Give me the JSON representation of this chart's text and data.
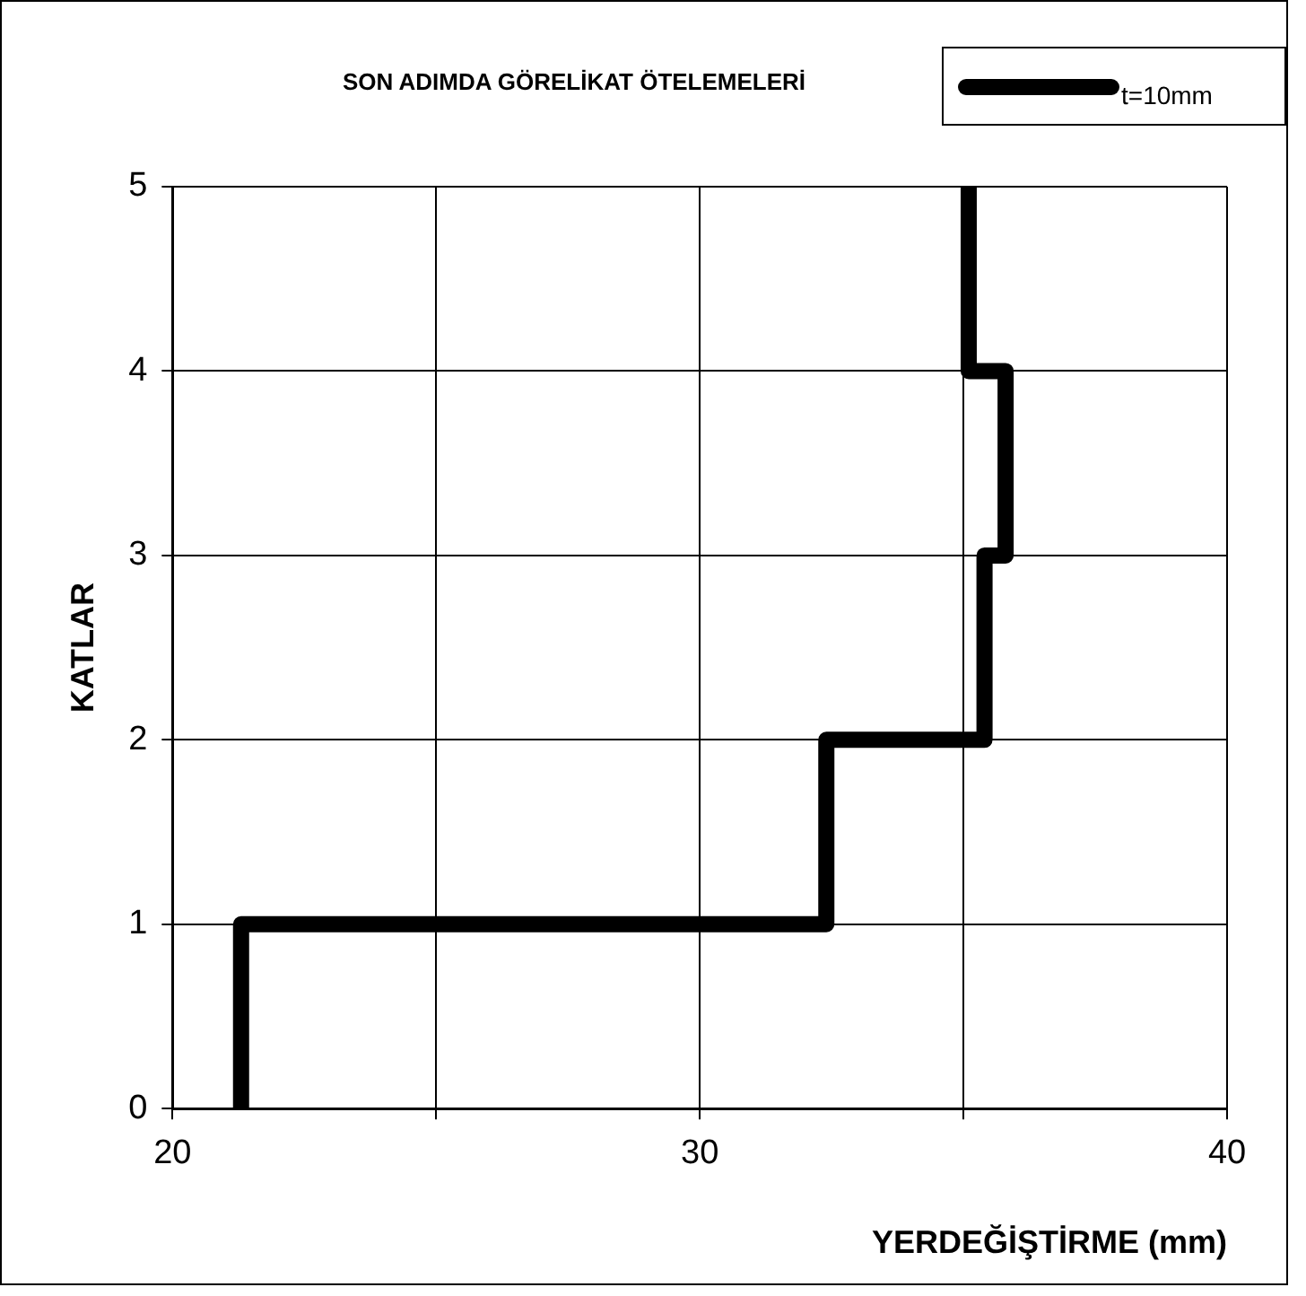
{
  "chart_data": {
    "type": "line",
    "title": "SON ADIMDA GÖRELİKAT ÖTELEMELERİ",
    "xlabel": "YERDEĞİŞTİRME (mm)",
    "ylabel": "KATLAR",
    "series": [
      {
        "name": "t=10mm",
        "color": "#000000",
        "x": [
          21.3,
          21.3,
          32.4,
          32.4,
          35.4,
          35.4,
          35.8,
          35.8,
          35.1,
          35.1
        ],
        "values": [
          0,
          1,
          1,
          2,
          2,
          3,
          3,
          4,
          4,
          5
        ]
      }
    ],
    "xlim": [
      20,
      40
    ],
    "xticks": [
      20,
      {
        "value": 25,
        "label": null
      },
      30,
      {
        "value": 35,
        "label": null
      },
      40
    ],
    "ylim": [
      0,
      5
    ],
    "yticks": [
      0,
      1,
      2,
      3,
      4,
      5
    ],
    "grid": true,
    "legend": "top right",
    "marker": "none",
    "line_style": "solid"
  }
}
